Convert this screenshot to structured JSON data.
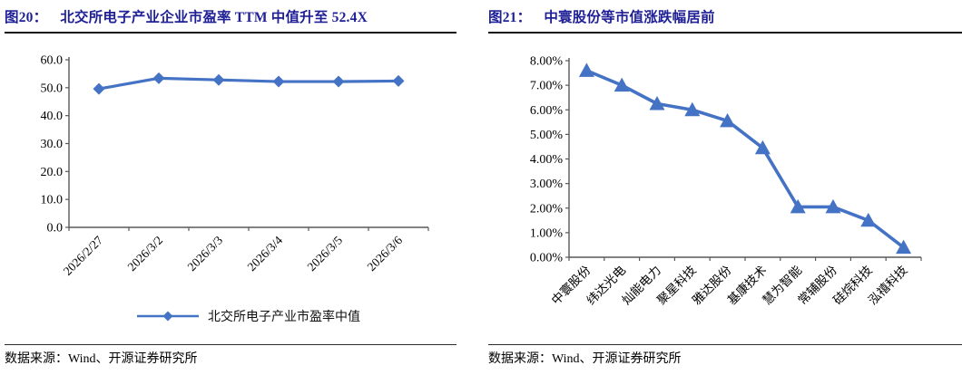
{
  "figures": [
    {
      "label": "图20：",
      "title": "北交所电子产业企业市盈率 TTM 中值升至 52.4X",
      "source": "数据来源：Wind、开源证券研究所"
    },
    {
      "label": "图21：",
      "title": "中寰股份等市值涨跌幅居前",
      "source": "数据来源：Wind、开源证券研究所"
    }
  ],
  "colors": {
    "line_blue": "#4472C4",
    "title_navy": "#1F1F96",
    "axis_gray": "#595959"
  },
  "chart_data": [
    {
      "type": "line",
      "title": "北交所电子产业企业市盈率 TTM 中值升至 52.4X",
      "categories": [
        "2026/2/27",
        "2026/3/2",
        "2026/3/3",
        "2026/3/4",
        "2026/3/5",
        "2026/3/6"
      ],
      "series": [
        {
          "name": "北交所电子产业市盈率中值",
          "values": [
            49.6,
            53.4,
            52.8,
            52.2,
            52.2,
            52.4
          ]
        }
      ],
      "ylim": [
        0,
        60
      ],
      "y_ticks": [
        0,
        10,
        20,
        30,
        40,
        50,
        60
      ],
      "y_tick_labels": [
        "0.0",
        "10.0",
        "20.0",
        "30.0",
        "40.0",
        "50.0",
        "60.0"
      ],
      "grid": false,
      "legend_position": "bottom",
      "marker": "diamond",
      "line_color": "#4472C4"
    },
    {
      "type": "line",
      "title": "中寰股份等市值涨跌幅居前",
      "categories": [
        "中寰股份",
        "纬达光电",
        "灿能电力",
        "聚星科技",
        "雅达股份",
        "基康技术",
        "慧为智能",
        "常辅股份",
        "硅烷科技",
        "泓禧科技"
      ],
      "series": [
        {
          "name": "",
          "values": [
            7.6,
            7.0,
            6.25,
            6.0,
            5.55,
            4.45,
            2.05,
            2.05,
            1.5,
            0.4
          ]
        }
      ],
      "ylim": [
        0,
        8
      ],
      "y_ticks": [
        0,
        1,
        2,
        3,
        4,
        5,
        6,
        7,
        8
      ],
      "y_tick_labels": [
        "0.00%",
        "1.00%",
        "2.00%",
        "3.00%",
        "4.00%",
        "5.00%",
        "6.00%",
        "7.00%",
        "8.00%"
      ],
      "grid": false,
      "legend_position": "none",
      "marker": "triangle",
      "line_color": "#4472C4"
    }
  ]
}
